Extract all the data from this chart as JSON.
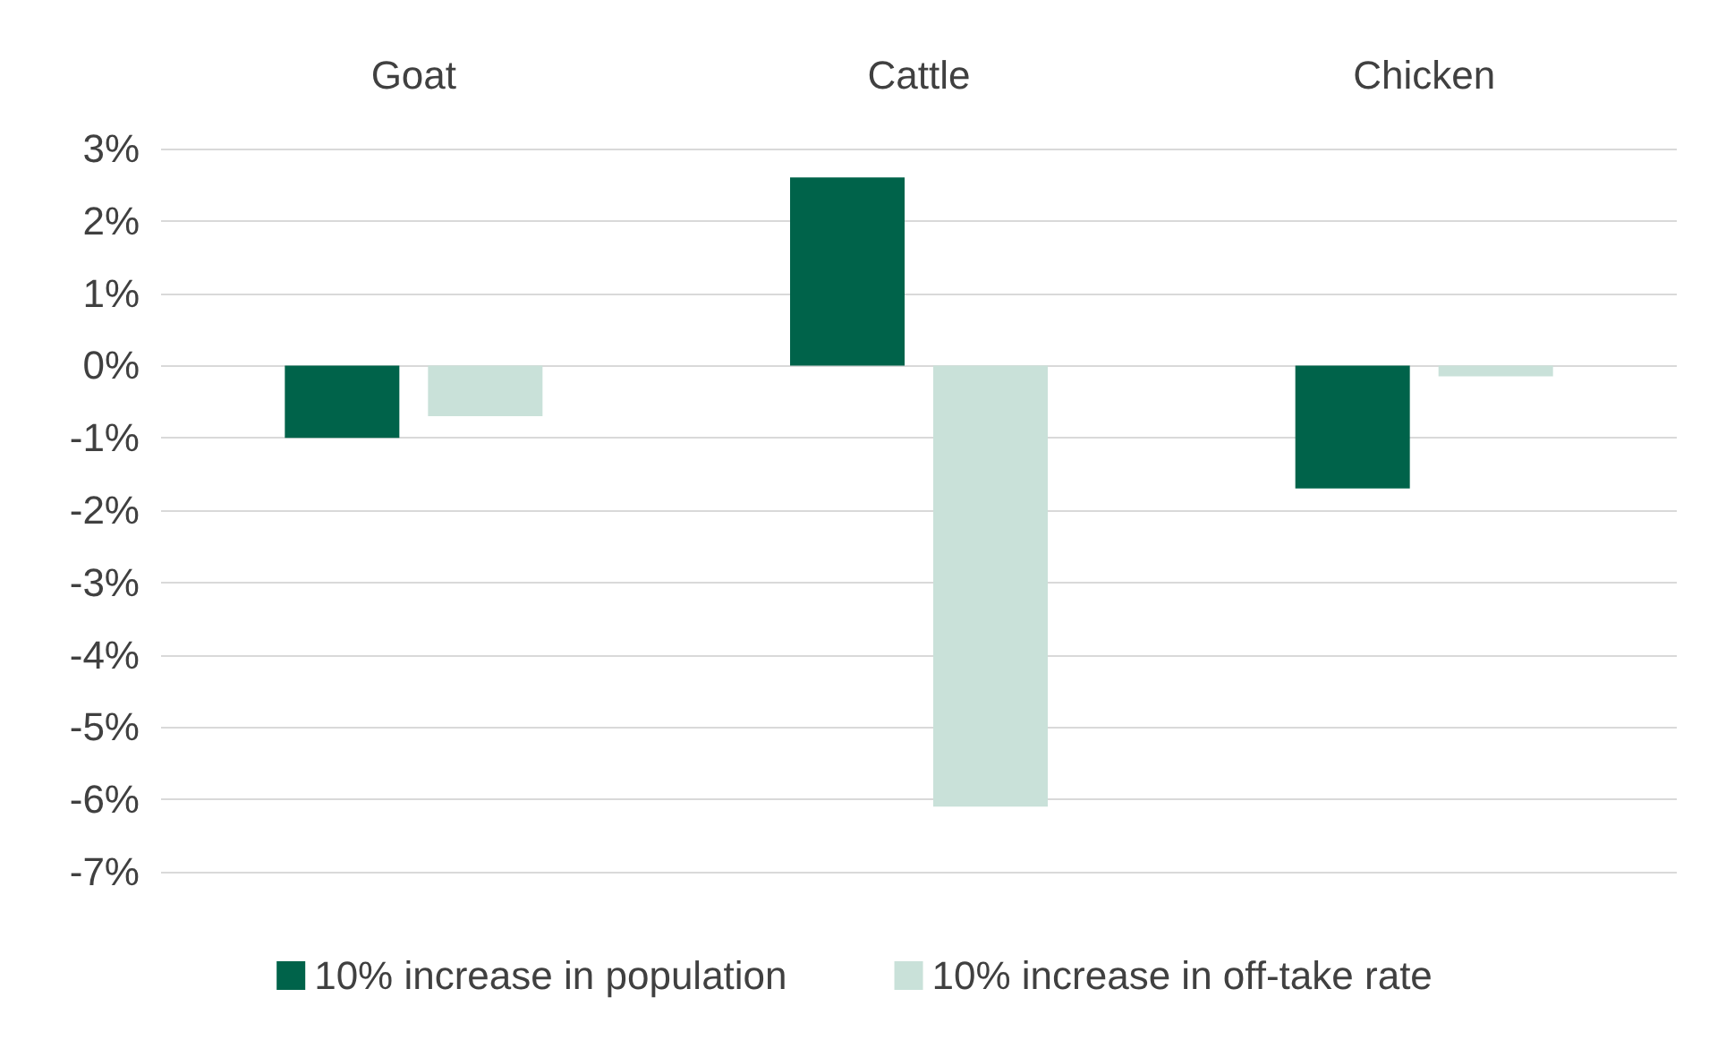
{
  "chart_data": {
    "type": "bar",
    "categories": [
      "Goat",
      "Cattle",
      "Chicken"
    ],
    "series": [
      {
        "name": "10% increase in population",
        "color": "#00634a",
        "values": [
          -1.0,
          2.6,
          -1.7
        ]
      },
      {
        "name": "10% increase in off-take rate",
        "color": "#c9e1d9",
        "values": [
          -0.7,
          -6.1,
          -0.15
        ]
      }
    ],
    "ylim": [
      -7,
      3
    ],
    "yticks": [
      {
        "value": -7,
        "label": "-7%"
      },
      {
        "value": -6,
        "label": "-6%"
      },
      {
        "value": -5,
        "label": "-5%"
      },
      {
        "value": -4,
        "label": "-4%"
      },
      {
        "value": -3,
        "label": "-3%"
      },
      {
        "value": -2,
        "label": "-2%"
      },
      {
        "value": -1,
        "label": "-1%"
      },
      {
        "value": 0,
        "label": "0%"
      },
      {
        "value": 1,
        "label": "1%"
      },
      {
        "value": 2,
        "label": "2%"
      },
      {
        "value": 3,
        "label": "3%"
      }
    ],
    "grid": "y",
    "legend": "bottom"
  }
}
